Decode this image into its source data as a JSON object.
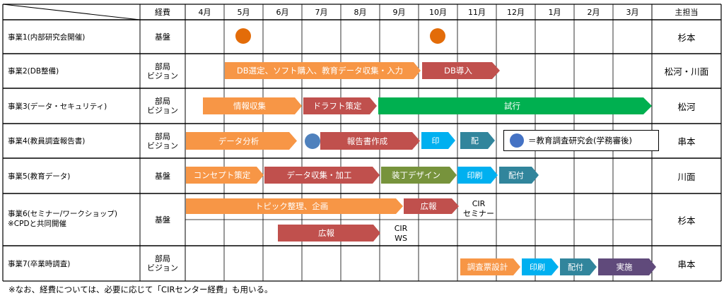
{
  "header": {
    "budget": "経費",
    "months": [
      "4月",
      "5月",
      "6月",
      "7月",
      "8月",
      "9月",
      "10月",
      "11月",
      "12月",
      "1月",
      "2月",
      "3月"
    ],
    "owner": "主担当"
  },
  "rows": [
    {
      "task": "事業1(内部研究会開催)",
      "budget": "基盤",
      "owner": "杉本"
    },
    {
      "task": "事業2(DB整備)",
      "budget": "部局\nビジョン",
      "owner": "松河・川面"
    },
    {
      "task": "事業3(データ・セキュリティ)",
      "budget": "部局\nビジョン",
      "owner": "松河"
    },
    {
      "task": "事業4(教員調査報告書)",
      "budget": "部局\nビジョン",
      "owner": "串本"
    },
    {
      "task": "事業5(教育データ)",
      "budget": "基盤",
      "owner": "川面"
    },
    {
      "task": "事業6(セミナー/ワークショップ)\n※CPDと共同開催",
      "budget": "基盤",
      "owner": "杉本"
    },
    {
      "task": "事業7(卒業時調査)",
      "budget": "部局\nビジョン",
      "owner": "串本"
    }
  ],
  "bars": [
    {
      "label": "DB選定、ソフト購入、教育データ収集・入力",
      "color": "#F79646"
    },
    {
      "label": "DB導入",
      "color": "#C0504D"
    },
    {
      "label": "情報収集",
      "color": "#F79646"
    },
    {
      "label": "ドラフト策定",
      "color": "#C0504D"
    },
    {
      "label": "試行",
      "color": "#00B050"
    },
    {
      "label": "データ分析",
      "color": "#F79646"
    },
    {
      "label": "報告書作成",
      "color": "#C0504D"
    },
    {
      "label": "印",
      "color": "#00B0F0"
    },
    {
      "label": "配",
      "color": "#31859C"
    },
    {
      "label": "コンセプト策定",
      "color": "#F79646"
    },
    {
      "label": "データ収集・加工",
      "color": "#C0504D"
    },
    {
      "label": "装丁デザイン",
      "color": "#77933C"
    },
    {
      "label": "印刷",
      "color": "#00B0F0"
    },
    {
      "label": "配付",
      "color": "#31859C"
    },
    {
      "label": "トピック整理、企画",
      "color": "#F79646"
    },
    {
      "label": "広報",
      "color": "#C0504D"
    },
    {
      "label": "広報",
      "color": "#C0504D"
    },
    {
      "label": "調査票設計",
      "color": "#F79646"
    },
    {
      "label": "印刷",
      "color": "#00B0F0"
    },
    {
      "label": "配付",
      "color": "#31859C"
    },
    {
      "label": "実施",
      "color": "#604A7B"
    }
  ],
  "dots": {
    "orange": "#E36C09",
    "blue": "#4F81BD"
  },
  "labels": {
    "cir_seminar": "CIR\nセミナー",
    "cir_ws": "CIR\nWS"
  },
  "legend": {
    "text": "＝教育調査研究会(学務審後)"
  },
  "note": "※なお、経費については、必要に応じて「CIRセンター経費」も用いる。"
}
